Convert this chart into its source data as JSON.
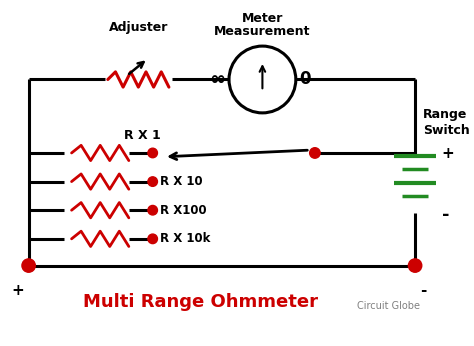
{
  "title": "Multi Range Ohmmeter",
  "subtitle": "Circuit Globe",
  "bg_color": "#ffffff",
  "wire_color": "#000000",
  "resistor_color": "#cc0000",
  "dot_color": "#cc0000",
  "battery_color": "#228B22",
  "text_color": "#000000",
  "title_color": "#cc0000",
  "adjuster_label": "Adjuster",
  "meter_label_top": "Meter",
  "meter_label_bot": "Measurement",
  "inf_label": "∞",
  "zero_label": "0",
  "range_label": "Range\nSwitch",
  "rx1_label": "R X 1",
  "rx10_label": "R X 10",
  "rx100_label": "R X100",
  "rx10k_label": "R X 10k",
  "plus_left": "+",
  "minus_right": "-",
  "plus_battery": "+",
  "minus_battery": "-"
}
